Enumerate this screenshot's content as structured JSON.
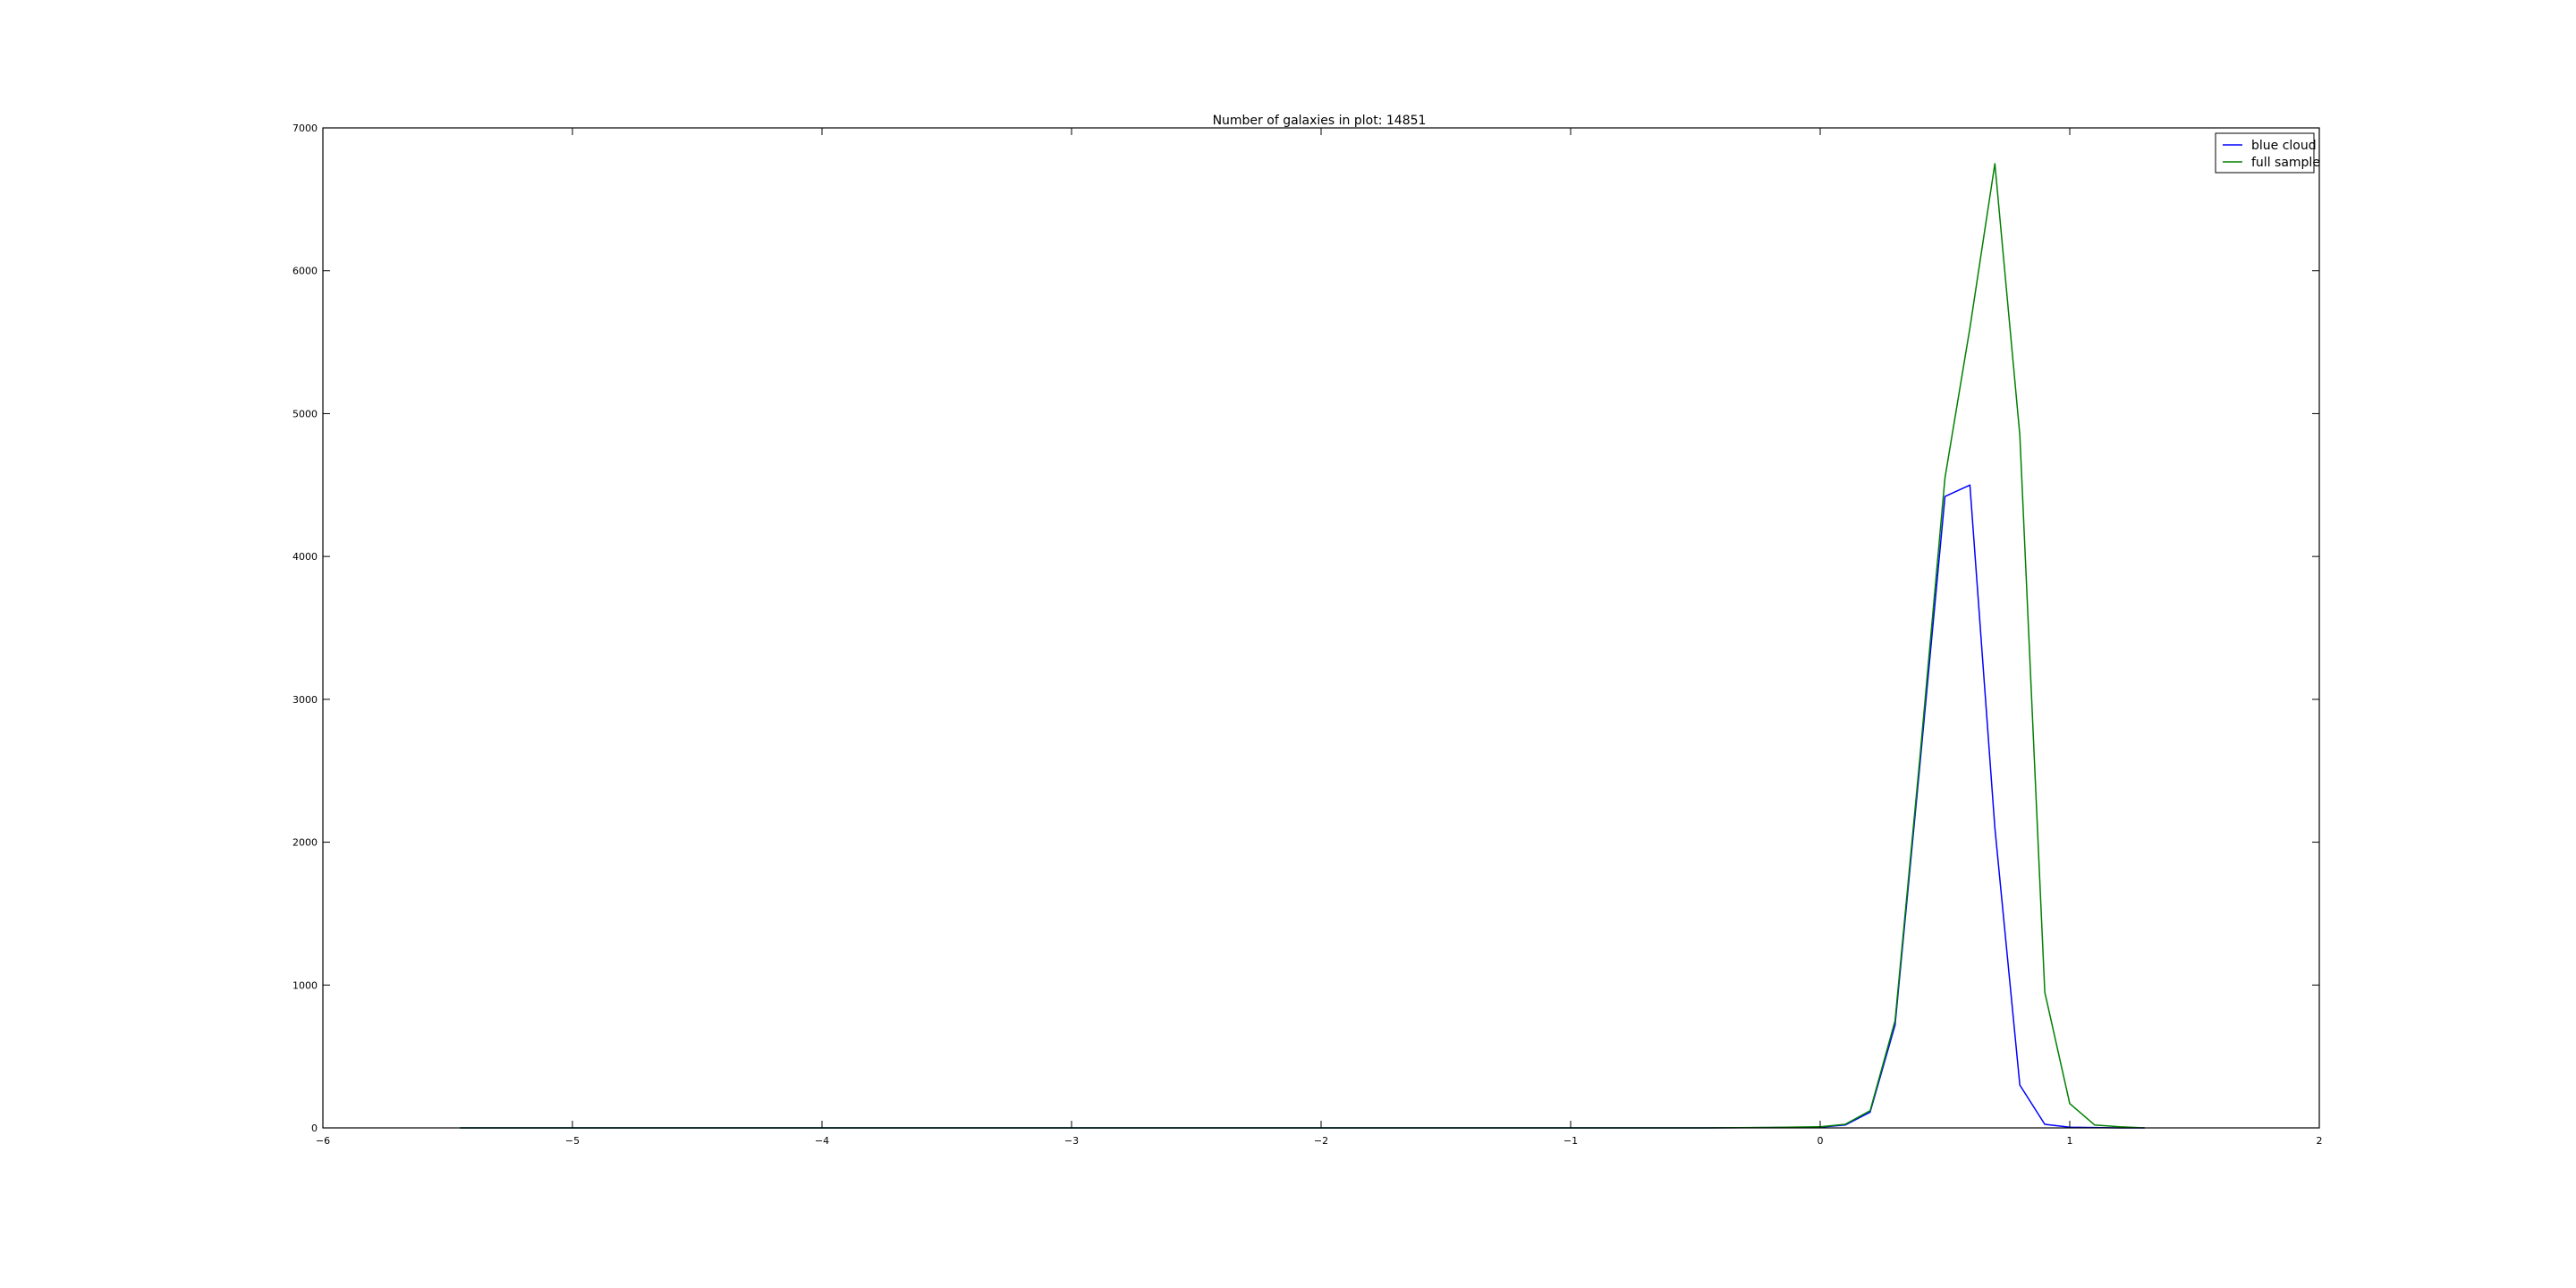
{
  "chart_data": {
    "type": "line",
    "title": "Number of galaxies in plot: 14851",
    "xlabel": "",
    "ylabel": "",
    "xlim": [
      -6,
      2
    ],
    "ylim": [
      0,
      7000
    ],
    "xticks": [
      -6,
      -5,
      -4,
      -3,
      -2,
      -1,
      0,
      1,
      2
    ],
    "xtick_labels": [
      "−6",
      "−5",
      "−4",
      "−3",
      "−2",
      "−1",
      "0",
      "1",
      "2"
    ],
    "yticks": [
      0,
      1000,
      2000,
      3000,
      4000,
      5000,
      6000,
      7000
    ],
    "ytick_labels": [
      "0",
      "1000",
      "2000",
      "3000",
      "4000",
      "5000",
      "6000",
      "7000"
    ],
    "grid": false,
    "legend_position": "top-right",
    "series": [
      {
        "name": "blue cloud",
        "color": "#0000ff",
        "x": [
          -5.45,
          -5.0,
          -4.0,
          -3.0,
          -2.0,
          -1.0,
          -0.5,
          -0.2,
          0.0,
          0.1,
          0.2,
          0.3,
          0.4,
          0.5,
          0.6,
          0.7,
          0.8,
          0.9,
          1.0,
          1.1,
          1.2,
          1.3
        ],
        "y": [
          0,
          0,
          0,
          0,
          0,
          0,
          0,
          2,
          5,
          20,
          110,
          720,
          2550,
          4420,
          4500,
          2100,
          300,
          25,
          5,
          2,
          0,
          0
        ]
      },
      {
        "name": "full sample",
        "color": "#008000",
        "x": [
          -5.45,
          -5.0,
          -4.0,
          -3.0,
          -2.0,
          -1.0,
          -0.5,
          -0.2,
          0.0,
          0.1,
          0.2,
          0.3,
          0.4,
          0.5,
          0.6,
          0.7,
          0.8,
          0.9,
          1.0,
          1.1,
          1.2,
          1.3
        ],
        "y": [
          0,
          0,
          0,
          0,
          0,
          0,
          0,
          3,
          8,
          25,
          120,
          750,
          2600,
          4550,
          5600,
          6750,
          4850,
          950,
          170,
          20,
          8,
          0
        ]
      }
    ]
  },
  "colors": {
    "axes": "#000000",
    "background": "#ffffff"
  }
}
